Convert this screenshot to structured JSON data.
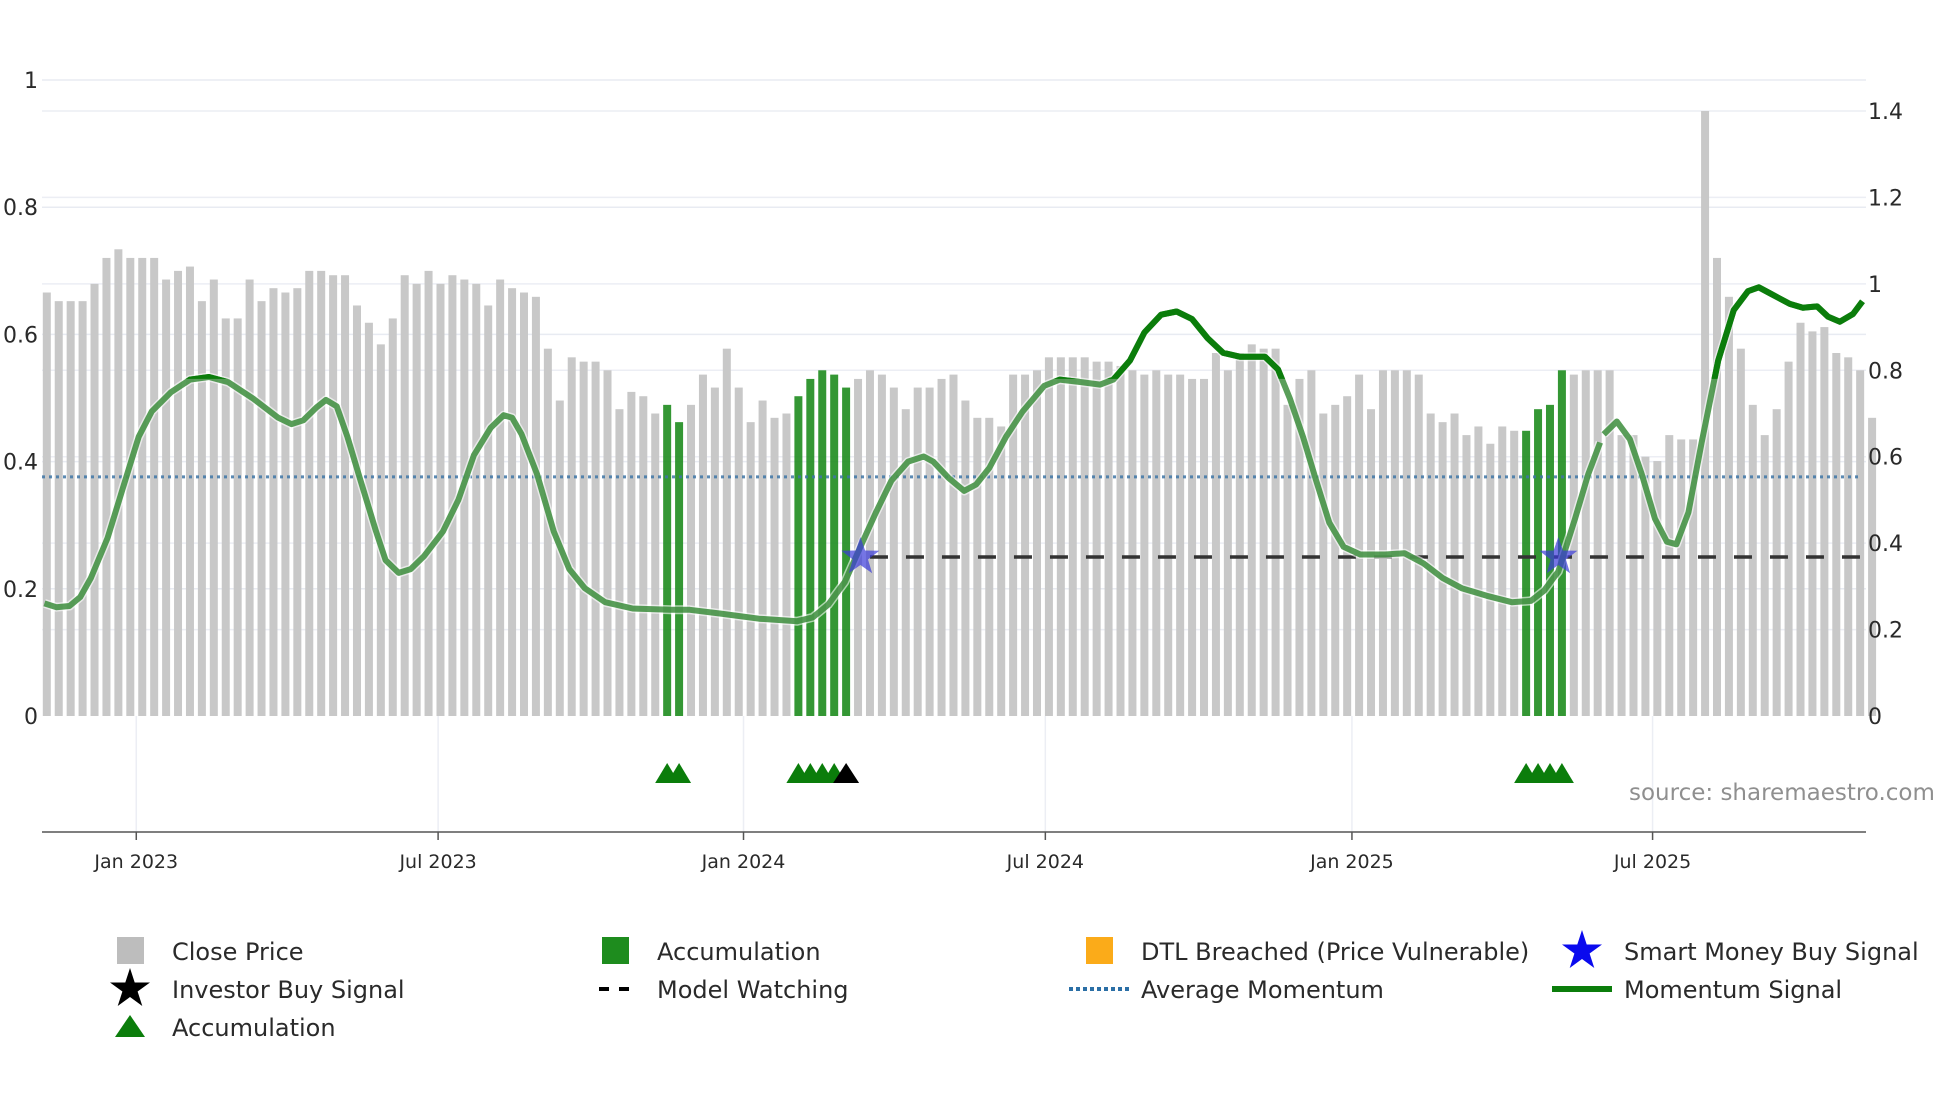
{
  "chart_data": {
    "type": "bar",
    "title": "",
    "x_unit": "week index",
    "left_axis": {
      "ticks": [
        "0",
        "0.2",
        "0.4",
        "0.6",
        "0.8",
        "1"
      ],
      "values": [
        0,
        0.2,
        0.4,
        0.6,
        0.8,
        1
      ],
      "ylim": [
        0,
        1
      ]
    },
    "right_axis": {
      "ticks": [
        "0",
        "0.2",
        "0.4",
        "0.6",
        "0.8",
        "1",
        "1.2",
        "1.4"
      ],
      "values": [
        0,
        0.2,
        0.4,
        0.6,
        0.8,
        1,
        1.2,
        1.4
      ],
      "ylim": [
        0,
        1.4
      ]
    },
    "x_ticks": [
      {
        "label": "Jan 2023",
        "index": 7.5
      },
      {
        "label": "Jul 2023",
        "index": 32.8
      },
      {
        "label": "Jan 2024",
        "index": 58.4
      },
      {
        "label": "Jul 2024",
        "index": 83.7
      },
      {
        "label": "Jan 2025",
        "index": 109.4
      },
      {
        "label": "Jul 2025",
        "index": 134.6
      }
    ],
    "close_price": [
      0.98,
      0.96,
      0.96,
      0.96,
      1.0,
      1.06,
      1.08,
      1.06,
      1.06,
      1.06,
      1.01,
      1.03,
      1.04,
      0.96,
      1.01,
      0.92,
      0.92,
      1.01,
      0.96,
      0.99,
      0.98,
      0.99,
      1.03,
      1.03,
      1.02,
      1.02,
      0.95,
      0.91,
      0.86,
      0.92,
      1.02,
      1.0,
      1.03,
      1.0,
      1.02,
      1.01,
      1.0,
      0.95,
      1.01,
      0.99,
      0.98,
      0.97,
      0.85,
      0.73,
      0.83,
      0.82,
      0.82,
      0.8,
      0.71,
      0.75,
      0.74,
      0.7,
      0.72,
      0.68,
      0.72,
      0.79,
      0.76,
      0.85,
      0.76,
      0.68,
      0.73,
      0.69,
      0.7,
      0.74,
      0.78,
      0.8,
      0.79,
      0.76,
      0.78,
      0.8,
      0.79,
      0.76,
      0.71,
      0.76,
      0.76,
      0.78,
      0.79,
      0.73,
      0.69,
      0.69,
      0.67,
      0.79,
      0.79,
      0.8,
      0.83,
      0.83,
      0.83,
      0.83,
      0.82,
      0.82,
      0.81,
      0.8,
      0.79,
      0.8,
      0.79,
      0.79,
      0.78,
      0.78,
      0.84,
      0.8,
      0.84,
      0.86,
      0.85,
      0.85,
      0.72,
      0.78,
      0.8,
      0.7,
      0.72,
      0.74,
      0.79,
      0.71,
      0.8,
      0.8,
      0.8,
      0.79,
      0.7,
      0.68,
      0.7,
      0.65,
      0.67,
      0.63,
      0.67,
      0.66,
      0.66,
      0.71,
      0.72,
      0.8,
      0.79,
      0.8,
      0.8,
      0.8,
      0.65,
      0.65,
      0.6,
      0.59,
      0.65,
      0.64,
      0.64,
      1.4,
      1.06,
      0.97,
      0.85,
      0.72,
      0.65,
      0.71,
      0.82,
      0.91,
      0.89,
      0.9,
      0.84,
      0.83,
      0.8,
      0.69
    ],
    "accumulation_bars": [
      52,
      53,
      63,
      64,
      65,
      66,
      67,
      124,
      125,
      126,
      127
    ],
    "accumulation_markers": [
      52,
      53,
      63,
      64,
      65,
      66,
      124,
      125,
      126,
      127
    ],
    "investor_buy_signals": [
      67
    ],
    "smart_money_buy_signals": [
      {
        "index": 68.2,
        "value": 0.25
      },
      {
        "index": 126.7,
        "value": 0.25
      }
    ],
    "model_watching": {
      "start_index": 69,
      "value": 0.25
    },
    "average_momentum": 0.376,
    "momentum_strong_threshold": 0.53,
    "momentum_signal": [
      [
        [
          -0.2,
          0.177
        ],
        [
          0.8,
          0.171
        ],
        [
          1.9,
          0.173
        ],
        [
          2.8,
          0.187
        ],
        [
          3.7,
          0.217
        ],
        [
          5.1,
          0.28
        ],
        [
          6.4,
          0.36
        ],
        [
          7.7,
          0.439
        ],
        [
          8.8,
          0.479
        ],
        [
          10.4,
          0.509
        ],
        [
          12,
          0.529
        ],
        [
          13.6,
          0.533
        ],
        [
          15.2,
          0.525
        ],
        [
          17.3,
          0.499
        ],
        [
          19.4,
          0.469
        ],
        [
          20.5,
          0.459
        ],
        [
          21.5,
          0.465
        ],
        [
          22.6,
          0.485
        ],
        [
          23.4,
          0.497
        ],
        [
          24.3,
          0.487
        ],
        [
          25.2,
          0.439
        ],
        [
          26.3,
          0.37
        ],
        [
          27.6,
          0.29
        ],
        [
          28.4,
          0.245
        ],
        [
          29.5,
          0.225
        ],
        [
          30.5,
          0.231
        ],
        [
          31.6,
          0.251
        ],
        [
          33.2,
          0.29
        ],
        [
          34.5,
          0.34
        ],
        [
          35.8,
          0.41
        ],
        [
          37.2,
          0.453
        ],
        [
          38.3,
          0.473
        ],
        [
          39,
          0.469
        ],
        [
          39.8,
          0.443
        ],
        [
          41.1,
          0.38
        ],
        [
          42.5,
          0.29
        ],
        [
          43.8,
          0.231
        ],
        [
          45.1,
          0.201
        ],
        [
          46.8,
          0.179
        ],
        [
          49.1,
          0.169
        ],
        [
          52.3,
          0.167
        ],
        [
          53.9,
          0.167
        ],
        [
          56.5,
          0.161
        ],
        [
          59.7,
          0.153
        ],
        [
          62.9,
          0.149
        ],
        [
          64.2,
          0.155
        ],
        [
          65.5,
          0.175
        ],
        [
          66.9,
          0.211
        ],
        [
          68.2,
          0.266
        ],
        [
          69.5,
          0.32
        ],
        [
          70.8,
          0.37
        ],
        [
          72.2,
          0.4
        ],
        [
          73.5,
          0.408
        ],
        [
          74.3,
          0.4
        ],
        [
          75.6,
          0.374
        ],
        [
          76.9,
          0.354
        ],
        [
          77.9,
          0.364
        ],
        [
          79,
          0.39
        ],
        [
          80.4,
          0.439
        ],
        [
          81.8,
          0.479
        ],
        [
          83.6,
          0.519
        ],
        [
          84.9,
          0.529
        ],
        [
          86.7,
          0.525
        ],
        [
          88.3,
          0.521
        ],
        [
          89.4,
          0.529
        ],
        [
          90.8,
          0.559
        ],
        [
          92,
          0.603
        ],
        [
          93.4,
          0.631
        ],
        [
          94.7,
          0.636
        ],
        [
          96,
          0.624
        ],
        [
          97.3,
          0.594
        ],
        [
          98.6,
          0.571
        ],
        [
          100,
          0.565
        ],
        [
          102.1,
          0.565
        ],
        [
          103.2,
          0.545
        ],
        [
          104.2,
          0.499
        ],
        [
          105.3,
          0.439
        ],
        [
          106.4,
          0.37
        ],
        [
          107.5,
          0.304
        ],
        [
          108.7,
          0.266
        ],
        [
          110.1,
          0.254
        ],
        [
          112.2,
          0.254
        ],
        [
          113.8,
          0.256
        ],
        [
          115.4,
          0.24
        ],
        [
          117,
          0.217
        ],
        [
          118.6,
          0.201
        ],
        [
          120.7,
          0.189
        ],
        [
          122.8,
          0.179
        ],
        [
          124.4,
          0.181
        ],
        [
          125.5,
          0.197
        ],
        [
          126.7,
          0.227
        ],
        [
          128.1,
          0.31
        ],
        [
          129.2,
          0.38
        ],
        [
          130.2,
          0.43
        ]
      ],
      [
        [
          130.5,
          0.443
        ],
        [
          131.6,
          0.463
        ],
        [
          132.7,
          0.435
        ],
        [
          133.7,
          0.38
        ],
        [
          134.8,
          0.31
        ],
        [
          135.8,
          0.274
        ],
        [
          136.6,
          0.27
        ],
        [
          137.6,
          0.32
        ],
        [
          138.7,
          0.429
        ],
        [
          140.1,
          0.559
        ],
        [
          141.4,
          0.638
        ],
        [
          142.6,
          0.668
        ],
        [
          143.5,
          0.674
        ],
        [
          144.5,
          0.664
        ],
        [
          146.1,
          0.648
        ],
        [
          147.2,
          0.642
        ],
        [
          148.4,
          0.644
        ],
        [
          149.3,
          0.628
        ],
        [
          150.3,
          0.62
        ],
        [
          151.4,
          0.632
        ],
        [
          152.2,
          0.652
        ]
      ]
    ],
    "source_text": "source: sharemaestro.com",
    "legend_position": "bottom",
    "legend": [
      {
        "label": "Close Price",
        "color": "#bdbdbd",
        "symbol": "square"
      },
      {
        "label": "Accumulation",
        "color": "#1e8c1e",
        "symbol": "square"
      },
      {
        "label": "DTL Breached (Price Vulnerable)",
        "color": "#fbab19",
        "symbol": "square"
      },
      {
        "label": "Smart Money Buy Signal",
        "color": "#0a0aee",
        "symbol": "star"
      },
      {
        "label": "Investor Buy Signal",
        "color": "#000000",
        "symbol": "star"
      },
      {
        "label": "Model Watching",
        "color": "#000000",
        "symbol": "dash"
      },
      {
        "label": "Average Momentum",
        "color": "#2b6fa6",
        "symbol": "dot"
      },
      {
        "label": "Momentum Signal",
        "color": "#0b7d0b",
        "symbol": "line"
      },
      {
        "label": "Accumulation",
        "color": "#0b7d0b",
        "symbol": "triangle"
      }
    ]
  }
}
